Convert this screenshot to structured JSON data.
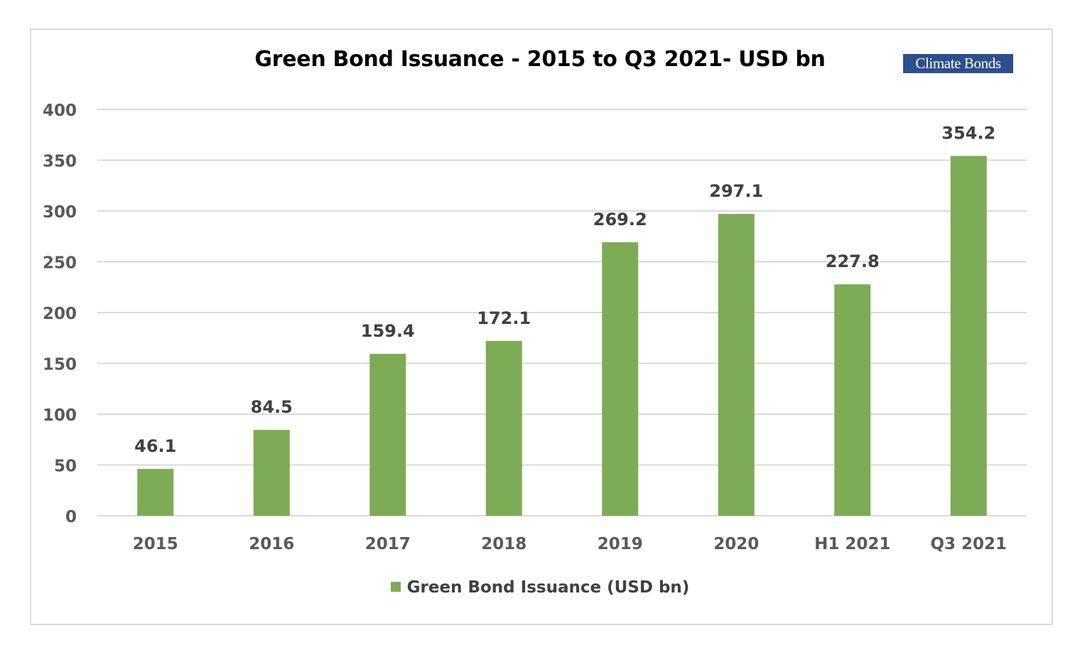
{
  "logo_text": "Climate Bonds",
  "colors": {
    "bar": "#7eab55",
    "grid": "#d9d9d9",
    "tick_text": "#595959",
    "label_text": "#404040"
  },
  "chart_data": {
    "type": "bar",
    "title": "Green Bond Issuance - 2015 to Q3 2021- USD bn",
    "categories": [
      "2015",
      "2016",
      "2017",
      "2018",
      "2019",
      "2020",
      "H1 2021",
      "Q3 2021"
    ],
    "series": [
      {
        "name": "Green Bond Issuance (USD bn)",
        "values": [
          46.1,
          84.5,
          159.4,
          172.1,
          269.2,
          297.1,
          227.8,
          354.2
        ],
        "labels": [
          "46.1",
          "84.5",
          "159.4",
          "172.1",
          "269.2",
          "297.1",
          "227.8",
          "354.2"
        ]
      }
    ],
    "ylim": [
      0,
      400
    ],
    "yticks": [
      "0",
      "50",
      "100",
      "150",
      "200",
      "250",
      "300",
      "350",
      "400"
    ],
    "xlabel": "",
    "ylabel": "",
    "grid": true,
    "legend_position": "bottom"
  }
}
